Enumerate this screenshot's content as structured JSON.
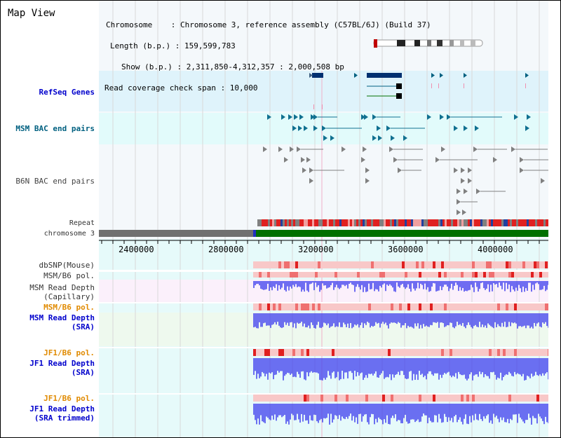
{
  "title": "Map View",
  "info": {
    "lines": [
      "Chromosome    : Chromosome 3, reference assembly (C57BL/6J) (Build 37)",
      "Length (b.p.) : 159,599,783",
      "Show (b.p.) : 2,311,850-4,312,357 : 2,000,508 bp",
      "Read coverage check span : 10,000"
    ]
  },
  "tracks": {
    "refseq": "RefSeq Genes",
    "msm_bac": "MSM BAC end pairs",
    "b6n_bac": "B6N BAC end pairs",
    "repeat": "Repeat",
    "chromosome": "chromosome 3",
    "dbsnp": "dbSNP(Mouse)",
    "msm_b6_pol_1": "MSM/B6 pol.",
    "msm_read_depth_cap_1": "MSM Read Depth",
    "msm_read_depth_cap_2": "(Capillary)",
    "msm_b6_pol_2": "MSM/B6 pol.",
    "msm_read_depth_sra_1": "MSM Read Depth",
    "msm_read_depth_sra_2": "(SRA)",
    "jf1_b6_pol_1": "JF1/B6 pol.",
    "jf1_read_depth_sra_1": "JF1 Read Depth",
    "jf1_read_depth_sra_2": "(SRA)",
    "jf1_b6_pol_2": "JF1/B6 pol.",
    "jf1_read_depth_trim_1": "JF1 Read Depth",
    "jf1_read_depth_trim_2": "(SRA trimmed)"
  },
  "axis": {
    "ticks": [
      "2400000",
      "2800000",
      "3200000",
      "3600000",
      "4000000"
    ]
  },
  "colors": {
    "refseq_bg": "#dff3fb",
    "msm_bac_bg": "#e2fbfb",
    "main_bg": "#f4f8fb",
    "depth_bg_cap": "#fbf0fb",
    "depth_bg_sra": "#eef9ee",
    "depth_bg_jf1": "#e6fafa",
    "pol_light": "#f8c8c8",
    "pol_dark": "#e02020",
    "depth_bar": "#4040ee",
    "chrom_gray": "#707070",
    "chrom_green": "#007000"
  }
}
